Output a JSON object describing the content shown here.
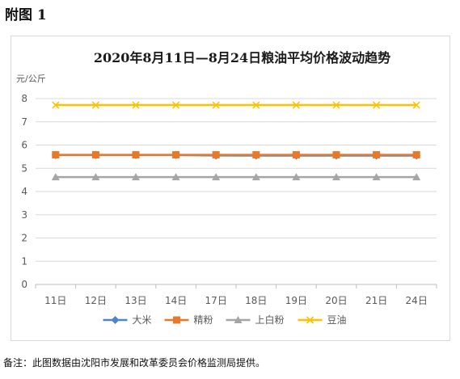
{
  "appendix_label": "附图 1",
  "note": "备注：此图数据由沈阳市发展和改革委员会价格监测局提供。",
  "chart_data": {
    "type": "line",
    "title": "2020年8月11日—8月24日粮油平均价格波动趋势",
    "ylabel": "元/公斤",
    "xlabel": "",
    "categories": [
      "11日",
      "12日",
      "13日",
      "14日",
      "17日",
      "18日",
      "19日",
      "20日",
      "21日",
      "24日"
    ],
    "ylim": [
      0,
      8
    ],
    "yticks": [
      0,
      1,
      2,
      3,
      4,
      5,
      6,
      7,
      8
    ],
    "grid": true,
    "legend": "bottom",
    "series": [
      {
        "name": "大米",
        "color": "#4a86c8",
        "marker": "diamond",
        "values": [
          5.57,
          5.57,
          5.57,
          5.57,
          5.55,
          5.55,
          5.55,
          5.55,
          5.55,
          5.55
        ]
      },
      {
        "name": "精粉",
        "color": "#e8782a",
        "marker": "square",
        "values": [
          5.58,
          5.58,
          5.58,
          5.58,
          5.58,
          5.58,
          5.58,
          5.58,
          5.58,
          5.58
        ]
      },
      {
        "name": "上白粉",
        "color": "#a5a5a5",
        "marker": "triangle",
        "values": [
          4.62,
          4.62,
          4.62,
          4.62,
          4.62,
          4.62,
          4.62,
          4.62,
          4.62,
          4.62
        ]
      },
      {
        "name": "豆油",
        "color": "#ffc000",
        "marker": "x",
        "values": [
          7.72,
          7.72,
          7.72,
          7.72,
          7.72,
          7.72,
          7.72,
          7.72,
          7.72,
          7.72
        ]
      }
    ]
  }
}
